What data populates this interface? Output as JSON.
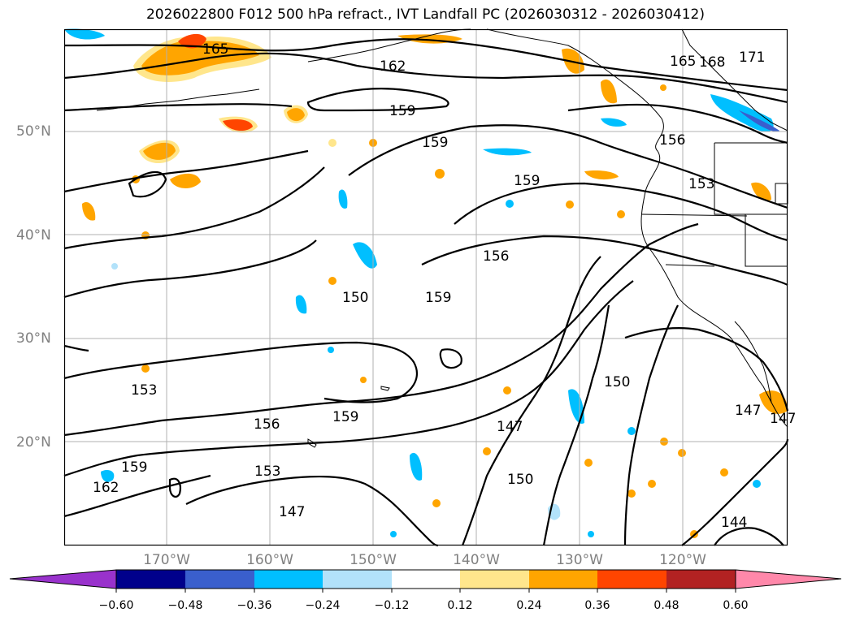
{
  "title": "2026022800 F012 500 hPa refract., IVT Landfall PC (2026030312 - 2026030412)",
  "map": {
    "latitude_labels": [
      "50°N",
      "40°N",
      "30°N",
      "20°N"
    ],
    "longitude_labels": [
      "170°W",
      "160°W",
      "150°W",
      "140°W",
      "130°W",
      "120°W"
    ],
    "contour_labels": [
      "165",
      "162",
      "159",
      "159",
      "168",
      "171",
      "165",
      "156",
      "159",
      "153",
      "156",
      "150",
      "159",
      "153",
      "156",
      "159",
      "159",
      "162",
      "153",
      "147",
      "147",
      "150",
      "150",
      "147",
      "147",
      "144"
    ]
  },
  "colorbar": {
    "tick_labels": [
      "−0.60",
      "−0.48",
      "−0.36",
      "−0.24",
      "−0.12",
      "0.12",
      "0.24",
      "0.36",
      "0.48",
      "0.60"
    ],
    "colors": [
      "#9932cc",
      "#00008b",
      "#3a5fcd",
      "#00bfff",
      "#b2e2fa",
      "#ffffff",
      "#ffe68c",
      "#ffa500",
      "#ff4500",
      "#b22222",
      "#ff88aa"
    ]
  }
}
